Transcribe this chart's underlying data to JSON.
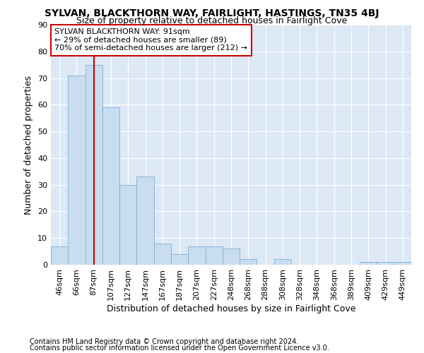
{
  "title": "SYLVAN, BLACKTHORN WAY, FAIRLIGHT, HASTINGS, TN35 4BJ",
  "subtitle": "Size of property relative to detached houses in Fairlight Cove",
  "xlabel": "Distribution of detached houses by size in Fairlight Cove",
  "ylabel": "Number of detached properties",
  "footer1": "Contains HM Land Registry data © Crown copyright and database right 2024.",
  "footer2": "Contains public sector information licensed under the Open Government Licence v3.0.",
  "bins": [
    "46sqm",
    "66sqm",
    "87sqm",
    "107sqm",
    "127sqm",
    "147sqm",
    "167sqm",
    "187sqm",
    "207sqm",
    "227sqm",
    "248sqm",
    "268sqm",
    "288sqm",
    "308sqm",
    "328sqm",
    "348sqm",
    "368sqm",
    "389sqm",
    "409sqm",
    "429sqm",
    "449sqm"
  ],
  "values": [
    7,
    71,
    75,
    59,
    30,
    33,
    8,
    4,
    7,
    7,
    6,
    2,
    0,
    2,
    0,
    0,
    0,
    0,
    1,
    1,
    1
  ],
  "bar_color": "#c9ddf0",
  "bar_edge_color": "#7bafd4",
  "red_line_index": 2,
  "annotation_line1": "SYLVAN BLACKTHORN WAY: 91sqm",
  "annotation_line2": "← 29% of detached houses are smaller (89)",
  "annotation_line3": "70% of semi-detached houses are larger (212) →",
  "annotation_box_color": "white",
  "annotation_box_edge_color": "#cc0000",
  "red_line_color": "#cc0000",
  "ylim": [
    0,
    90
  ],
  "yticks": [
    0,
    10,
    20,
    30,
    40,
    50,
    60,
    70,
    80,
    90
  ],
  "plot_bg_color": "#dde8f5",
  "grid_color": "white",
  "title_fontsize": 10,
  "subtitle_fontsize": 9,
  "annotation_fontsize": 8,
  "ylabel_fontsize": 9,
  "xlabel_fontsize": 9,
  "tick_fontsize": 8,
  "footer_fontsize": 7
}
